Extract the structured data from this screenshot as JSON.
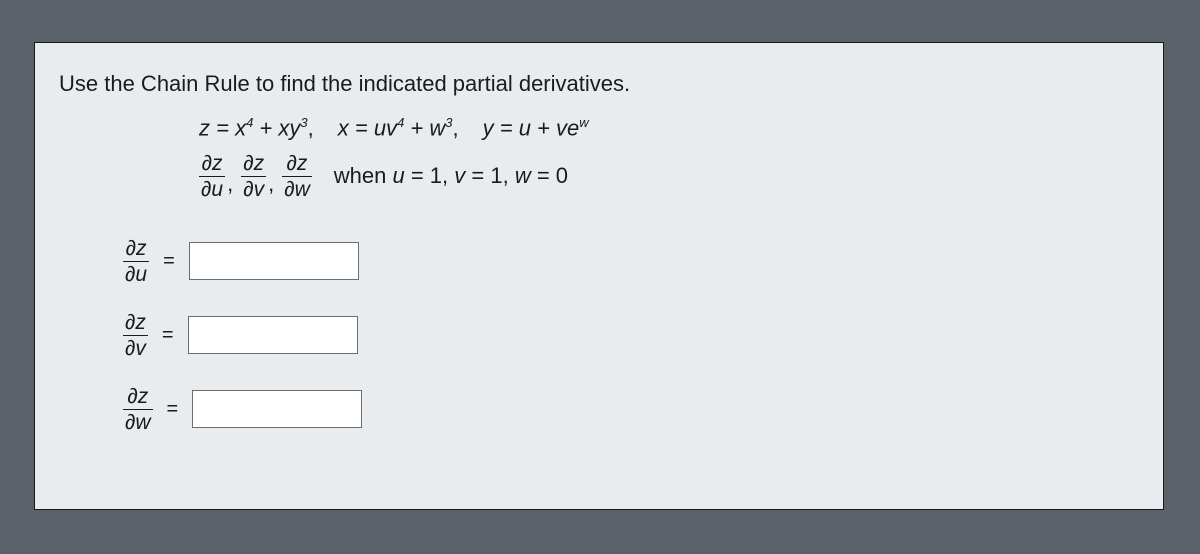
{
  "prompt": "Use the Chain Rule to find the indicated partial derivatives.",
  "equations": {
    "z_def_lhs": "z = x",
    "z_exp1": "4",
    "z_mid": " + xy",
    "z_exp2": "3",
    "z_comma": ",",
    "x_def_lhs": "x = uv",
    "x_exp1": "4",
    "x_mid": " + w",
    "x_exp2": "3",
    "x_comma": ",",
    "y_def_lhs": "y = u + ve",
    "y_exp": "w"
  },
  "partials_list": {
    "p1_num": "∂z",
    "p1_den": "∂u",
    "p2_num": "∂z",
    "p2_den": "∂v",
    "p3_num": "∂z",
    "p3_den": "∂w"
  },
  "when_text": {
    "when": "when ",
    "u": "u",
    "eq1": " = 1, ",
    "v": "v",
    "eq2": " = 1, ",
    "w": "w",
    "eq3": " = 0"
  },
  "answers": {
    "label1_num": "∂z",
    "label1_den": "∂u",
    "label2_num": "∂z",
    "label2_den": "∂v",
    "label3_num": "∂z",
    "label3_den": "∂w",
    "eq_sign": "=",
    "value1": "",
    "value2": "",
    "value3": ""
  },
  "style": {
    "paper_bg": "#e9ecee",
    "page_bg": "#5a6168",
    "border_color": "#1a1a1a",
    "text_color": "#1b1b1b",
    "input_border": "#6d6d6d",
    "input_bg": "#ffffff",
    "prompt_fontsize": 22,
    "math_fontsize": 22,
    "input_width": 170,
    "input_height": 38
  }
}
